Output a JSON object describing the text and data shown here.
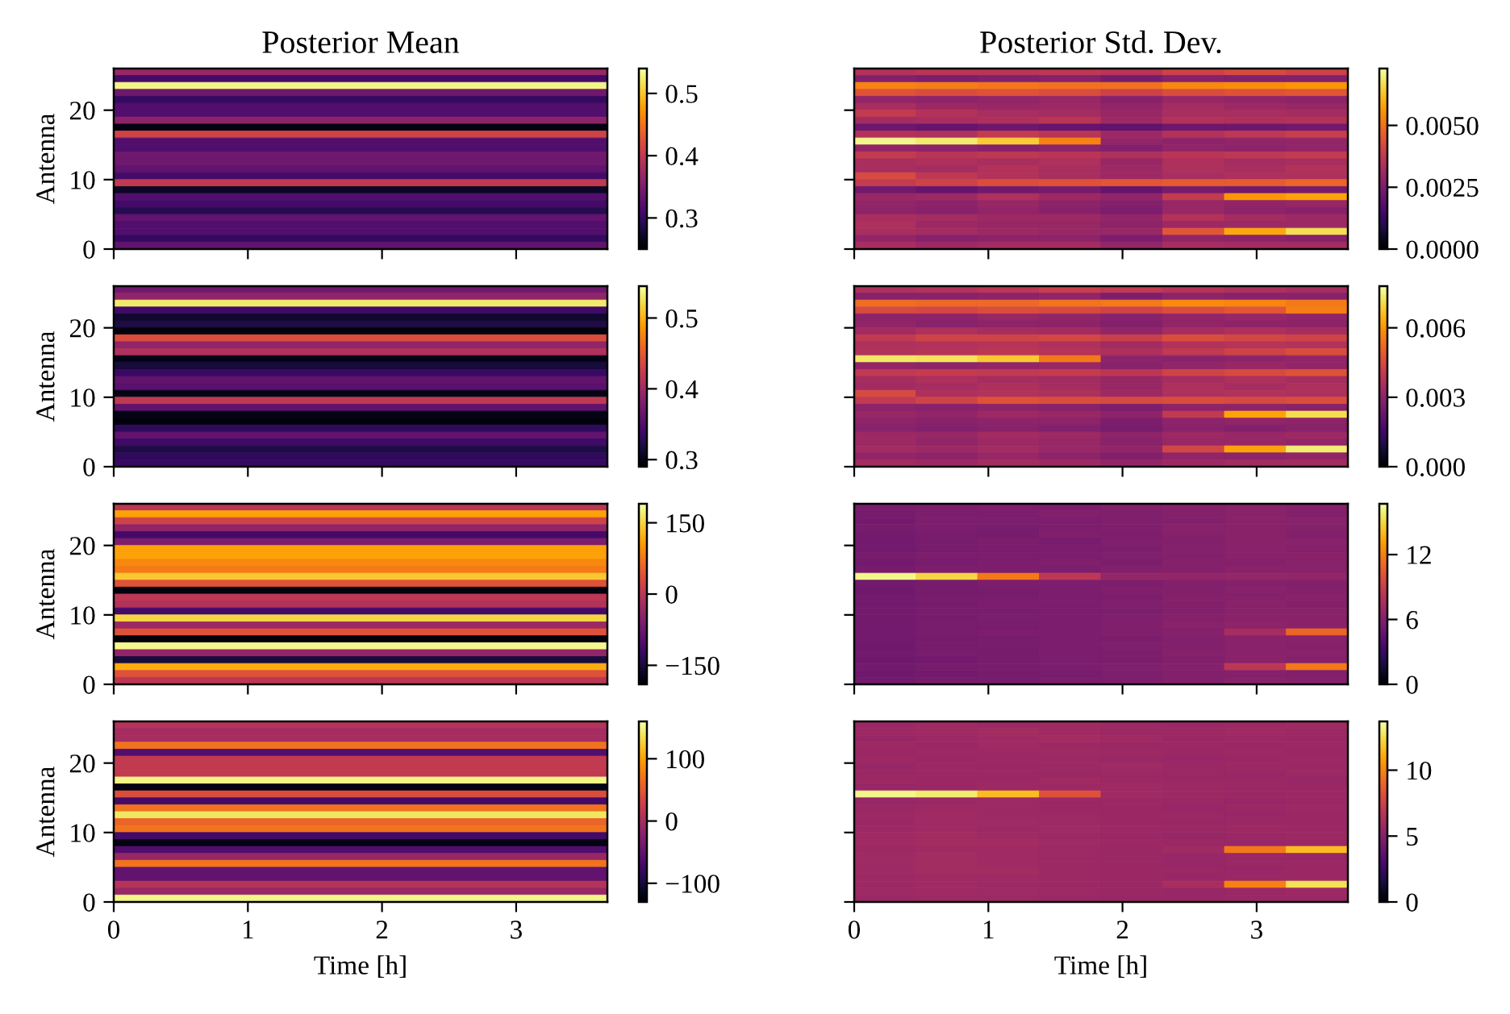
{
  "chart_data": [
    {
      "type": "heatmap",
      "title": "Posterior Mean",
      "ylabel": "Antenna",
      "cells": [
        [
          0.37
        ],
        [
          0.31
        ],
        [
          0.53
        ],
        [
          0.34
        ],
        [
          0.3
        ],
        [
          0.32
        ],
        [
          0.32
        ],
        [
          0.36
        ],
        [
          0.26
        ],
        [
          0.41
        ],
        [
          0.32
        ],
        [
          0.32
        ],
        [
          0.34
        ],
        [
          0.34
        ],
        [
          0.33
        ],
        [
          0.31
        ],
        [
          0.4
        ],
        [
          0.27
        ],
        [
          0.32
        ],
        [
          0.31
        ],
        [
          0.29
        ],
        [
          0.33
        ],
        [
          0.32
        ],
        [
          0.32
        ],
        [
          0.3
        ],
        [
          0.33
        ]
      ],
      "xlim": [
        0,
        3.68
      ],
      "xticks": [
        0,
        1,
        2,
        3
      ],
      "ylim": [
        0,
        26
      ],
      "yticks": [
        0,
        10,
        20
      ],
      "clim": [
        0.25,
        0.54
      ],
      "cticks": [
        0.3,
        0.4,
        0.5
      ],
      "tick_labels": "y"
    },
    {
      "type": "heatmap",
      "title": "Posterior Std. Dev.",
      "x": [
        0.23,
        0.69,
        1.15,
        1.61,
        2.07,
        2.53,
        2.99,
        3.45
      ],
      "cells": [
        [
          0.0035,
          0.0036,
          0.0036,
          0.0037,
          0.0036,
          0.004,
          0.0042,
          0.004
        ],
        [
          0.0026,
          0.0025,
          0.0026,
          0.0027,
          0.0024,
          0.0027,
          0.0026,
          0.0026
        ],
        [
          0.0053,
          0.0052,
          0.0051,
          0.005,
          0.005,
          0.0054,
          0.0055,
          0.0056
        ],
        [
          0.0044,
          0.0043,
          0.0044,
          0.0043,
          0.004,
          0.0043,
          0.0044,
          0.0045
        ],
        [
          0.0029,
          0.0028,
          0.0029,
          0.003,
          0.0027,
          0.003,
          0.0029,
          0.0028
        ],
        [
          0.0033,
          0.0031,
          0.003,
          0.0031,
          0.0029,
          0.0032,
          0.0031,
          0.003
        ],
        [
          0.0038,
          0.0035,
          0.0033,
          0.0032,
          0.003,
          0.0033,
          0.0033,
          0.0032
        ],
        [
          0.0032,
          0.0033,
          0.0034,
          0.0036,
          0.0031,
          0.0035,
          0.0034,
          0.0035
        ],
        [
          0.0022,
          0.0021,
          0.0022,
          0.0021,
          0.002,
          0.0022,
          0.0022,
          0.0023
        ],
        [
          0.0035,
          0.0034,
          0.0038,
          0.0036,
          0.0031,
          0.0035,
          0.0037,
          0.0039
        ],
        [
          0.0071,
          0.0069,
          0.0064,
          0.0053,
          0.0029,
          0.0028,
          0.0029,
          0.0029
        ],
        [
          0.0029,
          0.0028,
          0.0027,
          0.0028,
          0.0026,
          0.0029,
          0.0028,
          0.0029
        ],
        [
          0.0038,
          0.0036,
          0.0037,
          0.0036,
          0.0034,
          0.0036,
          0.0037,
          0.0038
        ],
        [
          0.0033,
          0.0034,
          0.0033,
          0.0034,
          0.003,
          0.0034,
          0.0032,
          0.0033
        ],
        [
          0.0033,
          0.0032,
          0.0035,
          0.0033,
          0.0031,
          0.0034,
          0.0033,
          0.0035
        ],
        [
          0.0042,
          0.0037,
          0.0035,
          0.0033,
          0.0031,
          0.0033,
          0.0034,
          0.0034
        ],
        [
          0.0038,
          0.004,
          0.0043,
          0.0044,
          0.0045,
          0.0046,
          0.0046,
          0.0048
        ],
        [
          0.0023,
          0.0021,
          0.0023,
          0.0024,
          0.0021,
          0.0024,
          0.0023,
          0.0024
        ],
        [
          0.003,
          0.0031,
          0.0034,
          0.0031,
          0.0029,
          0.0038,
          0.0056,
          0.0058
        ],
        [
          0.0029,
          0.0028,
          0.003,
          0.0028,
          0.0026,
          0.003,
          0.0029,
          0.003
        ],
        [
          0.0028,
          0.0027,
          0.0029,
          0.0027,
          0.0025,
          0.003,
          0.0028,
          0.0027
        ],
        [
          0.0033,
          0.0032,
          0.0031,
          0.0031,
          0.0029,
          0.0035,
          0.0032,
          0.0031
        ],
        [
          0.0034,
          0.0031,
          0.003,
          0.003,
          0.0028,
          0.0031,
          0.0031,
          0.0031
        ],
        [
          0.0033,
          0.0032,
          0.0031,
          0.003,
          0.003,
          0.0045,
          0.0059,
          0.0067
        ],
        [
          0.0029,
          0.0027,
          0.0028,
          0.0028,
          0.0025,
          0.0029,
          0.0028,
          0.0027
        ],
        [
          0.0033,
          0.0031,
          0.0032,
          0.0032,
          0.0029,
          0.0033,
          0.0032,
          0.0032
        ]
      ],
      "xlim": [
        0,
        3.68
      ],
      "xticks": [
        0,
        1,
        2,
        3
      ],
      "ylim": [
        0,
        26
      ],
      "yticks": [
        0,
        10,
        20
      ],
      "clim": [
        0,
        0.0073
      ],
      "cticks": [
        {
          "value": 0,
          "label": "0.0000"
        },
        {
          "value": 0.0025,
          "label": "0.0025"
        },
        {
          "value": 0.005,
          "label": "0.0050"
        }
      ],
      "tick_labels": false
    },
    {
      "type": "heatmap",
      "ylabel": "Antenna",
      "cells": [
        [
          0.37
        ],
        [
          0.39
        ],
        [
          0.53
        ],
        [
          0.34
        ],
        [
          0.31
        ],
        [
          0.32
        ],
        [
          0.295
        ],
        [
          0.44
        ],
        [
          0.39
        ],
        [
          0.41
        ],
        [
          0.3
        ],
        [
          0.315
        ],
        [
          0.335
        ],
        [
          0.36
        ],
        [
          0.355
        ],
        [
          0.3
        ],
        [
          0.42
        ],
        [
          0.36
        ],
        [
          0.3
        ],
        [
          0.295
        ],
        [
          0.33
        ],
        [
          0.36
        ],
        [
          0.34
        ],
        [
          0.32
        ],
        [
          0.33
        ],
        [
          0.335
        ]
      ],
      "xlim": [
        0,
        3.68
      ],
      "xticks": [
        0,
        1,
        2,
        3
      ],
      "ylim": [
        0,
        26
      ],
      "yticks": [
        0,
        10,
        20
      ],
      "clim": [
        0.29,
        0.545
      ],
      "cticks": [
        0.3,
        0.4,
        0.5
      ],
      "tick_labels": "y"
    },
    {
      "type": "heatmap",
      "x": [
        0.23,
        0.69,
        1.15,
        1.61,
        2.07,
        2.53,
        2.99,
        3.45
      ],
      "cells": [
        [
          0.0036,
          0.0037,
          0.0039,
          0.0042,
          0.004,
          0.0038,
          0.0036,
          0.0035
        ],
        [
          0.0029,
          0.0029,
          0.003,
          0.0031,
          0.0027,
          0.003,
          0.0029,
          0.0029
        ],
        [
          0.0053,
          0.0052,
          0.0052,
          0.0054,
          0.0055,
          0.0058,
          0.0057,
          0.0055
        ],
        [
          0.0045,
          0.0044,
          0.0046,
          0.0045,
          0.0043,
          0.0046,
          0.0048,
          0.0056
        ],
        [
          0.003,
          0.003,
          0.0032,
          0.0031,
          0.0029,
          0.0031,
          0.0032,
          0.0031
        ],
        [
          0.0031,
          0.0029,
          0.003,
          0.003,
          0.0028,
          0.0031,
          0.003,
          0.003
        ],
        [
          0.0034,
          0.0036,
          0.0035,
          0.0034,
          0.0031,
          0.0035,
          0.0036,
          0.0035
        ],
        [
          0.004,
          0.0043,
          0.0043,
          0.0044,
          0.0042,
          0.0046,
          0.0044,
          0.0043
        ],
        [
          0.0036,
          0.0037,
          0.0038,
          0.0036,
          0.0034,
          0.0037,
          0.0038,
          0.0037
        ],
        [
          0.0037,
          0.0038,
          0.0039,
          0.0038,
          0.0036,
          0.004,
          0.0043,
          0.0046
        ],
        [
          0.0073,
          0.0072,
          0.0068,
          0.0055,
          0.003,
          0.0029,
          0.003,
          0.0031
        ],
        [
          0.0031,
          0.003,
          0.0031,
          0.0032,
          0.0029,
          0.0031,
          0.0032,
          0.0031
        ],
        [
          0.004,
          0.0041,
          0.004,
          0.0041,
          0.0039,
          0.0043,
          0.0045,
          0.0047
        ],
        [
          0.0035,
          0.0036,
          0.0035,
          0.0034,
          0.0032,
          0.0035,
          0.0036,
          0.0035
        ],
        [
          0.0034,
          0.0035,
          0.0036,
          0.0035,
          0.0032,
          0.0036,
          0.0035,
          0.0036
        ],
        [
          0.0045,
          0.0036,
          0.0037,
          0.0036,
          0.0033,
          0.0036,
          0.0037,
          0.0036
        ],
        [
          0.004,
          0.0043,
          0.0047,
          0.0046,
          0.0045,
          0.0046,
          0.0045,
          0.0046
        ],
        [
          0.003,
          0.0029,
          0.003,
          0.0029,
          0.0027,
          0.003,
          0.003,
          0.0029
        ],
        [
          0.0032,
          0.0031,
          0.0033,
          0.0032,
          0.003,
          0.004,
          0.0062,
          0.0071
        ],
        [
          0.003,
          0.0029,
          0.003,
          0.003,
          0.0027,
          0.003,
          0.0031,
          0.003
        ],
        [
          0.0029,
          0.0028,
          0.0029,
          0.0028,
          0.0026,
          0.0029,
          0.0028,
          0.0029
        ],
        [
          0.0033,
          0.0032,
          0.0034,
          0.0033,
          0.003,
          0.0033,
          0.0032,
          0.0033
        ],
        [
          0.0033,
          0.0031,
          0.0033,
          0.0032,
          0.0029,
          0.0032,
          0.0032,
          0.0031
        ],
        [
          0.0034,
          0.0033,
          0.0034,
          0.0032,
          0.0031,
          0.0044,
          0.0062,
          0.0074
        ],
        [
          0.0031,
          0.003,
          0.0032,
          0.003,
          0.0028,
          0.0031,
          0.003,
          0.0031
        ],
        [
          0.0034,
          0.0033,
          0.0034,
          0.0033,
          0.0031,
          0.0033,
          0.0034,
          0.0034
        ]
      ],
      "xlim": [
        0,
        3.68
      ],
      "xticks": [
        0,
        1,
        2,
        3
      ],
      "ylim": [
        0,
        26
      ],
      "yticks": [
        0,
        10,
        20
      ],
      "clim": [
        0,
        0.0078
      ],
      "cticks": [
        {
          "value": 0,
          "label": "0.000"
        },
        {
          "value": 0.003,
          "label": "0.003"
        },
        {
          "value": 0.006,
          "label": "0.006"
        }
      ],
      "tick_labels": false
    },
    {
      "type": "heatmap",
      "ylabel": "Antenna",
      "cells": [
        [
          0
        ],
        [
          110
        ],
        [
          20
        ],
        [
          -40
        ],
        [
          -110
        ],
        [
          -60
        ],
        [
          110
        ],
        [
          110
        ],
        [
          90
        ],
        [
          80
        ],
        [
          140
        ],
        [
          40
        ],
        [
          -180
        ],
        [
          0
        ],
        [
          -10
        ],
        [
          -110
        ],
        [
          150
        ],
        [
          -30
        ],
        [
          40
        ],
        [
          -180
        ],
        [
          180
        ],
        [
          -40
        ],
        [
          -150
        ],
        [
          120
        ],
        [
          40
        ],
        [
          0
        ]
      ],
      "xlim": [
        0,
        3.68
      ],
      "xticks": [
        0,
        1,
        2,
        3
      ],
      "ylim": [
        0,
        26
      ],
      "yticks": [
        0,
        10,
        20
      ],
      "clim": [
        -190,
        190
      ],
      "cticks": [
        {
          "value": -150,
          "label": "−150"
        },
        0,
        150
      ],
      "tick_labels": "y"
    },
    {
      "type": "heatmap",
      "x": [
        0.23,
        0.69,
        1.15,
        1.61,
        2.07,
        2.53,
        2.99,
        3.45
      ],
      "cells": [
        [
          5.6,
          5.8,
          5.9,
          5.8,
          6.0,
          6.1,
          6.2,
          6.1
        ],
        [
          5.5,
          5.8,
          5.7,
          6.0,
          5.9,
          6.1,
          6.3,
          6.0
        ],
        [
          5.4,
          5.7,
          5.8,
          5.7,
          5.9,
          6.0,
          6.2,
          6.2
        ],
        [
          5.5,
          5.7,
          5.6,
          5.8,
          5.9,
          6.2,
          6.3,
          6.1
        ],
        [
          5.3,
          5.6,
          5.5,
          5.9,
          5.8,
          6.1,
          6.2,
          6.0
        ],
        [
          5.4,
          5.6,
          5.8,
          5.6,
          5.9,
          6.0,
          6.3,
          6.2
        ],
        [
          5.3,
          5.6,
          5.7,
          5.8,
          5.8,
          6.1,
          6.2,
          6.1
        ],
        [
          5.5,
          5.7,
          5.8,
          5.7,
          5.9,
          6.0,
          6.2,
          6.3
        ],
        [
          5.4,
          5.6,
          5.7,
          5.9,
          5.8,
          6.1,
          6.1,
          6.2
        ],
        [
          5.5,
          5.8,
          5.7,
          5.8,
          6.0,
          6.1,
          6.3,
          6.2
        ],
        [
          16.2,
          15.0,
          11.7,
          8.4,
          6.7,
          6.6,
          6.7,
          6.6
        ],
        [
          5.3,
          5.5,
          5.7,
          5.8,
          5.8,
          6.0,
          6.1,
          6.0
        ],
        [
          5.2,
          5.5,
          5.6,
          5.7,
          5.9,
          6.0,
          6.2,
          6.1
        ],
        [
          5.4,
          5.6,
          5.6,
          5.8,
          5.8,
          6.1,
          6.1,
          6.2
        ],
        [
          5.3,
          5.5,
          5.7,
          5.7,
          5.9,
          6.0,
          6.3,
          6.1
        ],
        [
          5.4,
          5.6,
          5.6,
          5.8,
          5.8,
          6.0,
          6.2,
          6.2
        ],
        [
          5.3,
          5.5,
          5.7,
          5.7,
          5.9,
          6.1,
          6.3,
          6.2
        ],
        [
          5.3,
          5.6,
          5.6,
          5.8,
          5.9,
          6.2,
          6.4,
          6.3
        ],
        [
          5.4,
          5.6,
          5.7,
          5.8,
          5.9,
          6.1,
          7.5,
          10.9
        ],
        [
          5.3,
          5.5,
          5.6,
          5.7,
          5.8,
          6.0,
          6.3,
          6.2
        ],
        [
          5.2,
          5.5,
          5.6,
          5.7,
          5.9,
          6.0,
          6.2,
          6.1
        ],
        [
          5.3,
          5.6,
          5.5,
          5.8,
          5.8,
          6.1,
          6.2,
          6.2
        ],
        [
          5.2,
          5.4,
          5.6,
          5.7,
          5.8,
          6.0,
          6.3,
          6.1
        ],
        [
          5.3,
          5.5,
          5.6,
          5.7,
          5.9,
          6.1,
          8.4,
          11.7
        ],
        [
          5.2,
          5.4,
          5.5,
          5.6,
          5.8,
          6.0,
          6.1,
          6.0
        ],
        [
          5.3,
          5.5,
          5.6,
          5.7,
          5.8,
          6.0,
          6.2,
          6.1
        ]
      ],
      "xlim": [
        0,
        3.68
      ],
      "xticks": [
        0,
        1,
        2,
        3
      ],
      "ylim": [
        0,
        26
      ],
      "yticks": [
        0,
        10,
        20
      ],
      "clim": [
        0,
        16.7
      ],
      "cticks": [
        0,
        6,
        12
      ],
      "tick_labels": false
    },
    {
      "type": "heatmap",
      "xlabel": "Time [h]",
      "ylabel": "Antenna",
      "cells": [
        [
          10
        ],
        [
          0
        ],
        [
          0
        ],
        [
          70
        ],
        [
          -60
        ],
        [
          20
        ],
        [
          20
        ],
        [
          20
        ],
        [
          150
        ],
        [
          -120
        ],
        [
          40
        ],
        [
          -70
        ],
        [
          70
        ],
        [
          140
        ],
        [
          60
        ],
        [
          70
        ],
        [
          -70
        ],
        [
          -120
        ],
        [
          -60
        ],
        [
          -10
        ],
        [
          70
        ],
        [
          -50
        ],
        [
          -50
        ],
        [
          10
        ],
        [
          -10
        ],
        [
          150
        ]
      ],
      "xlim": [
        0,
        3.68
      ],
      "xticks": [
        0,
        1,
        2,
        3
      ],
      "ylim": [
        0,
        26
      ],
      "yticks": [
        0,
        10,
        20
      ],
      "clim": [
        -130,
        160
      ],
      "cticks": [
        {
          "value": -100,
          "label": "−100"
        },
        0,
        100
      ]
    },
    {
      "type": "heatmap",
      "xlabel": "Time [h]",
      "x": [
        0.23,
        0.69,
        1.15,
        1.61,
        2.07,
        2.53,
        2.99,
        3.45
      ],
      "cells": [
        [
          5.7,
          5.9,
          5.8,
          5.9,
          5.8,
          5.7,
          5.8,
          5.9
        ],
        [
          5.8,
          5.9,
          6.0,
          5.9,
          5.8,
          5.8,
          5.9,
          5.8
        ],
        [
          5.6,
          5.8,
          5.9,
          6.0,
          5.9,
          5.7,
          5.8,
          5.7
        ],
        [
          5.8,
          5.7,
          5.9,
          5.8,
          5.7,
          5.8,
          5.7,
          5.8
        ],
        [
          5.7,
          5.8,
          5.8,
          5.9,
          5.8,
          5.7,
          5.8,
          5.7
        ],
        [
          5.8,
          5.7,
          5.8,
          5.8,
          5.7,
          5.6,
          5.7,
          5.8
        ],
        [
          5.6,
          5.8,
          5.7,
          5.8,
          5.9,
          5.7,
          5.8,
          5.7
        ],
        [
          5.7,
          5.8,
          5.8,
          5.7,
          5.8,
          5.7,
          5.6,
          5.8
        ],
        [
          5.8,
          5.7,
          5.8,
          5.9,
          5.8,
          5.7,
          5.7,
          5.6
        ],
        [
          5.6,
          5.7,
          5.8,
          5.8,
          5.9,
          5.8,
          5.7,
          5.7
        ],
        [
          13.3,
          13.0,
          11.6,
          8.2,
          5.9,
          5.8,
          5.7,
          5.8
        ],
        [
          5.6,
          5.7,
          5.8,
          5.7,
          5.8,
          5.7,
          5.6,
          5.7
        ],
        [
          5.7,
          5.8,
          5.8,
          5.7,
          5.7,
          5.6,
          5.7,
          5.8
        ],
        [
          5.8,
          5.9,
          5.8,
          5.8,
          5.7,
          5.7,
          5.6,
          5.7
        ],
        [
          5.7,
          5.9,
          5.9,
          5.8,
          5.7,
          5.6,
          5.7,
          5.7
        ],
        [
          5.8,
          5.9,
          5.8,
          5.9,
          5.8,
          5.7,
          5.8,
          5.7
        ],
        [
          5.9,
          6.0,
          5.9,
          5.8,
          5.7,
          5.6,
          5.7,
          5.8
        ],
        [
          5.9,
          6.0,
          6.0,
          5.9,
          5.8,
          5.7,
          5.6,
          5.7
        ],
        [
          5.8,
          5.9,
          5.9,
          5.8,
          5.7,
          5.9,
          9.6,
          11.6
        ],
        [
          5.9,
          6.0,
          5.9,
          5.8,
          5.7,
          5.6,
          5.7,
          5.6
        ],
        [
          5.9,
          6.0,
          5.9,
          5.8,
          5.7,
          5.6,
          5.7,
          5.7
        ],
        [
          5.9,
          6.0,
          6.0,
          5.8,
          5.7,
          5.7,
          5.6,
          5.7
        ],
        [
          5.8,
          5.9,
          5.9,
          5.8,
          5.7,
          5.6,
          5.7,
          5.7
        ],
        [
          5.8,
          5.9,
          5.8,
          5.8,
          5.7,
          6.2,
          9.9,
          12.6
        ],
        [
          5.8,
          5.9,
          5.9,
          5.8,
          5.7,
          5.6,
          5.7,
          5.8
        ],
        [
          5.7,
          5.8,
          5.8,
          5.7,
          5.6,
          5.6,
          5.7,
          5.7
        ]
      ],
      "xlim": [
        0,
        3.68
      ],
      "xticks": [
        0,
        1,
        2,
        3
      ],
      "ylim": [
        0,
        26
      ],
      "yticks": [
        0,
        10,
        20
      ],
      "clim": [
        0,
        13.7
      ],
      "cticks": [
        0,
        5,
        10
      ],
      "tick_labels": "x"
    }
  ]
}
